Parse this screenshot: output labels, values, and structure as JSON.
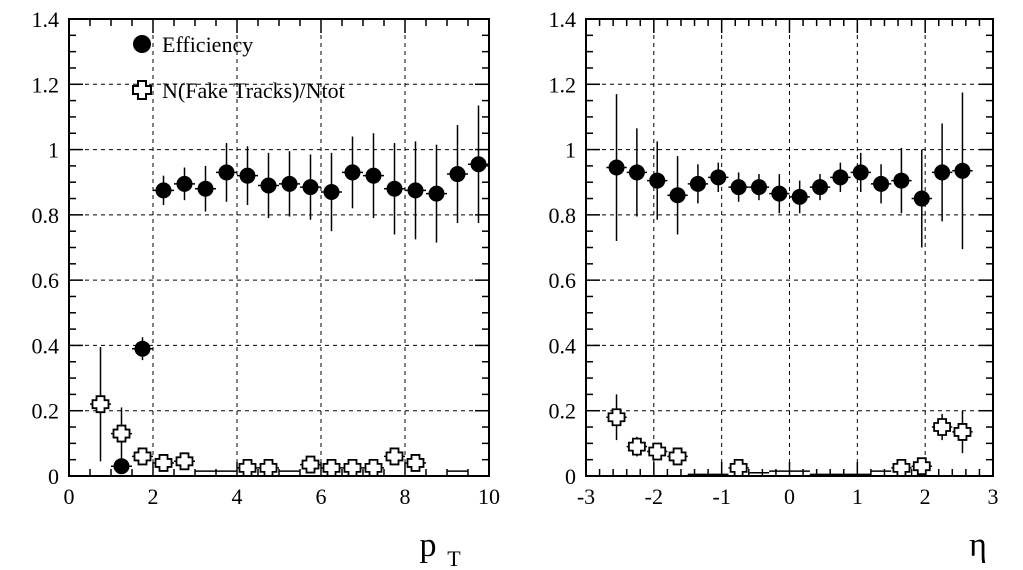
{
  "chart_data": [
    {
      "type": "scatter",
      "title": "",
      "xlabel": "p",
      "xlabel_subscript": "T",
      "ylabel": "",
      "xlim": [
        0,
        10
      ],
      "ylim": [
        0,
        1.4
      ],
      "xticks": [
        "0",
        "2",
        "4",
        "6",
        "8",
        "10"
      ],
      "yticks": [
        "0",
        "0.2",
        "0.4",
        "0.6",
        "0.8",
        "1",
        "1.2",
        "1.4"
      ],
      "grid": true,
      "legend_position": "top-left",
      "bin_half_width": 0.25,
      "series": [
        {
          "name": "Efficiency",
          "marker": "filled-circle",
          "x": [
            1.25,
            1.75,
            2.25,
            2.75,
            3.25,
            3.75,
            4.25,
            4.75,
            5.25,
            5.75,
            6.25,
            6.75,
            7.25,
            7.75,
            8.25,
            8.75,
            9.25,
            9.75
          ],
          "y": [
            0.03,
            0.39,
            0.875,
            0.895,
            0.88,
            0.93,
            0.92,
            0.89,
            0.895,
            0.885,
            0.87,
            0.93,
            0.92,
            0.88,
            0.875,
            0.865,
            0.925,
            0.955
          ],
          "yerr": [
            0.0,
            0.035,
            0.045,
            0.05,
            0.07,
            0.09,
            0.09,
            0.1,
            0.1,
            0.1,
            0.12,
            0.11,
            0.13,
            0.14,
            0.15,
            0.15,
            0.15,
            0.18
          ]
        },
        {
          "name": "N(Fake Tracks)/Ntot",
          "marker": "open-cross",
          "x": [
            0.75,
            1.25,
            1.75,
            2.25,
            2.75,
            3.25,
            3.75,
            4.25,
            4.75,
            5.25,
            5.75,
            6.25,
            6.75,
            7.25,
            7.75,
            8.25,
            8.75,
            9.25,
            9.75
          ],
          "y": [
            0.22,
            0.13,
            0.06,
            0.04,
            0.045,
            0.015,
            0.015,
            0.025,
            0.025,
            0.015,
            0.035,
            0.025,
            0.025,
            0.025,
            0.06,
            0.04,
            0.0,
            0.015,
            0.0
          ],
          "yerr": [
            0.175,
            0.08,
            0.02,
            0.015,
            0.02,
            0.0,
            0.0,
            0.015,
            0.0,
            0.0,
            0.02,
            0.0,
            0.0,
            0.0,
            0.02,
            0.02,
            0.0,
            0.0,
            0.0
          ],
          "marker_visible": [
            true,
            true,
            true,
            true,
            true,
            false,
            false,
            true,
            true,
            false,
            true,
            true,
            true,
            true,
            true,
            true,
            false,
            false,
            false
          ]
        }
      ]
    },
    {
      "type": "scatter",
      "title": "",
      "xlabel": "η",
      "ylabel": "",
      "xlim": [
        -3,
        3
      ],
      "ylim": [
        0,
        1.4
      ],
      "xticks": [
        "-3",
        "-2",
        "-1",
        "0",
        "1",
        "2",
        "3"
      ],
      "yticks": [
        "0",
        "0.2",
        "0.4",
        "0.6",
        "0.8",
        "1",
        "1.2",
        "1.4"
      ],
      "grid": true,
      "bin_half_width": 0.15,
      "series": [
        {
          "name": "Efficiency",
          "marker": "filled-circle",
          "x": [
            -2.55,
            -2.25,
            -1.95,
            -1.65,
            -1.35,
            -1.05,
            -0.75,
            -0.45,
            -0.15,
            0.15,
            0.45,
            0.75,
            1.05,
            1.35,
            1.65,
            1.95,
            2.25,
            2.55
          ],
          "y": [
            0.945,
            0.93,
            0.905,
            0.86,
            0.895,
            0.915,
            0.885,
            0.885,
            0.865,
            0.855,
            0.885,
            0.915,
            0.93,
            0.895,
            0.905,
            0.85,
            0.93,
            0.935
          ],
          "yerr": [
            0.225,
            0.135,
            0.12,
            0.12,
            0.06,
            0.045,
            0.045,
            0.04,
            0.06,
            0.05,
            0.04,
            0.045,
            0.06,
            0.06,
            0.1,
            0.15,
            0.15,
            0.24
          ]
        },
        {
          "name": "N(Fake Tracks)/Ntot",
          "marker": "open-cross",
          "x": [
            -2.55,
            -2.25,
            -1.95,
            -1.65,
            -1.35,
            -1.05,
            -0.75,
            -0.45,
            -0.15,
            0.15,
            0.45,
            0.75,
            1.05,
            1.35,
            1.65,
            1.95,
            2.25,
            2.55
          ],
          "y": [
            0.18,
            0.09,
            0.075,
            0.06,
            0.005,
            0.005,
            0.025,
            0.01,
            0.015,
            0.015,
            0.005,
            0.005,
            0.005,
            0.015,
            0.025,
            0.03,
            0.15,
            0.135
          ],
          "yerr": [
            0.07,
            0.03,
            0.02,
            0.02,
            0.0,
            0.0,
            0.015,
            0.0,
            0.0,
            0.0,
            0.0,
            0.0,
            0.0,
            0.0,
            0.015,
            0.015,
            0.04,
            0.065
          ],
          "marker_visible": [
            true,
            true,
            true,
            true,
            false,
            false,
            true,
            false,
            false,
            false,
            false,
            false,
            false,
            false,
            true,
            true,
            true,
            true
          ]
        }
      ]
    }
  ]
}
